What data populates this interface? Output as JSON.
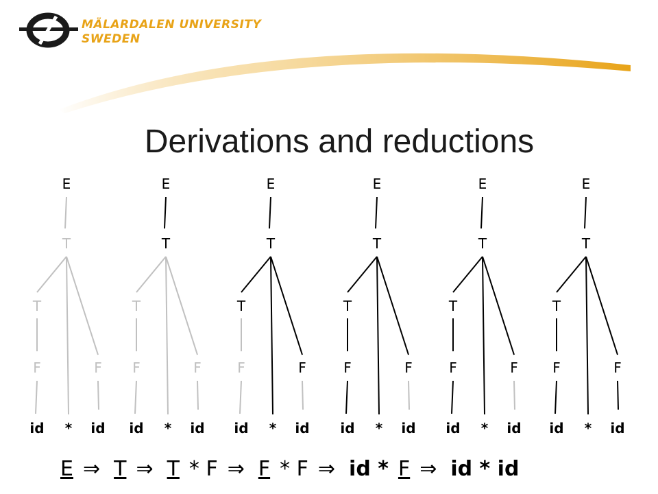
{
  "logo": {
    "line1": "MÄLARDALEN UNIVERSITY",
    "line2": "SWEDEN"
  },
  "title": "Derivations and reductions",
  "tree_labels": {
    "root": "E",
    "term": "T",
    "term_inner": "T",
    "factor_left": "F",
    "factor_right": "F",
    "leaf_left": "id",
    "leaf_op": "*",
    "leaf_right": "id"
  },
  "trees": [
    {
      "upper_active": false,
      "mid_active": false,
      "left_f_active": false,
      "right_f_active": false,
      "right_leaf_active": false
    },
    {
      "upper_active": true,
      "mid_active": false,
      "left_f_active": false,
      "right_f_active": false,
      "right_leaf_active": false
    },
    {
      "upper_active": true,
      "mid_active": true,
      "left_f_active": false,
      "right_f_active": true,
      "right_leaf_active": false
    },
    {
      "upper_active": true,
      "mid_active": true,
      "left_f_active": true,
      "right_f_active": true,
      "right_leaf_active": false
    },
    {
      "upper_active": true,
      "mid_active": true,
      "left_f_active": true,
      "right_f_active": true,
      "right_leaf_active": false
    },
    {
      "upper_active": true,
      "mid_active": true,
      "left_f_active": true,
      "right_f_active": true,
      "right_leaf_active": true
    }
  ],
  "derivation": [
    {
      "text": "E",
      "underline": true,
      "bold": false
    },
    {
      "text": "⇒",
      "arrow": true
    },
    {
      "text": "T",
      "underline": true,
      "bold": false
    },
    {
      "text": "⇒",
      "arrow": true
    },
    {
      "text": "T",
      "underline": true,
      "bold": false
    },
    {
      "text": "* F",
      "underline": false,
      "bold": false
    },
    {
      "text": "⇒",
      "arrow": true
    },
    {
      "text": "F",
      "underline": true,
      "bold": false
    },
    {
      "text": "* F",
      "underline": false,
      "bold": false
    },
    {
      "text": "⇒",
      "arrow": true
    },
    {
      "text": "id *",
      "underline": false,
      "bold": true
    },
    {
      "text": "F",
      "underline": true,
      "bold": false
    },
    {
      "text": "⇒",
      "arrow": true
    },
    {
      "text": "id * id",
      "underline": false,
      "bold": true
    }
  ],
  "colors": {
    "accent": "#e8a317",
    "active": "#000000",
    "inactive": "#c0c0c0",
    "logo_dark": "#1a1a1a"
  }
}
